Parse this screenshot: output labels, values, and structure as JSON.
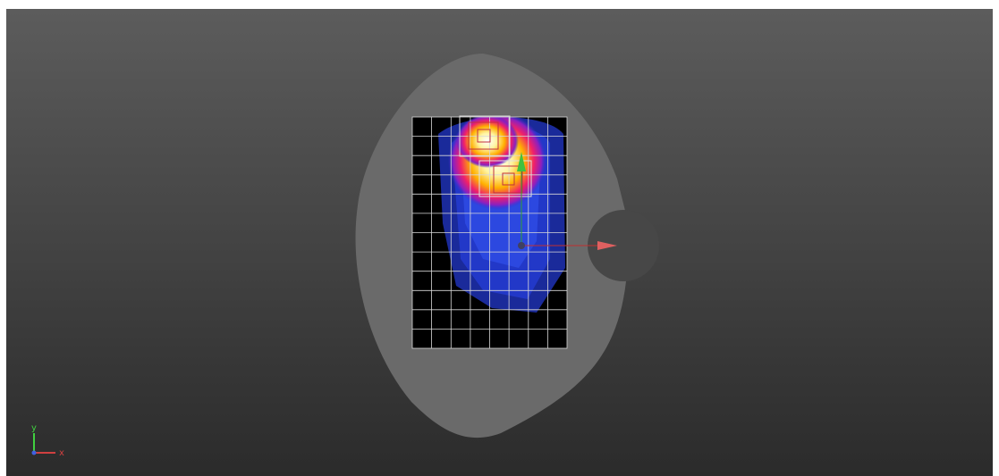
{
  "gizmo": {
    "y_label": "y",
    "x_label": "x"
  }
}
